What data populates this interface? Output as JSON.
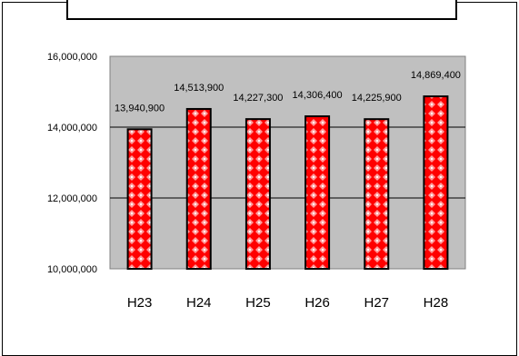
{
  "chart_data": {
    "type": "bar",
    "title": "",
    "xlabel": "",
    "ylabel": "",
    "categories": [
      "H23",
      "H24",
      "H25",
      "H26",
      "H27",
      "H28"
    ],
    "values": [
      13940900,
      14513900,
      14227300,
      14306400,
      14225900,
      14869400
    ],
    "data_labels": [
      "13,940,900",
      "14,513,900",
      "14,227,300",
      "14,306,400",
      "14,225,900",
      "14,869,400"
    ],
    "ylim": [
      10000000,
      16000000
    ],
    "yticks": [
      10000000,
      12000000,
      14000000,
      16000000
    ],
    "ytick_labels": [
      "10,000,000",
      "12,000,000",
      "14,000,000",
      "16,000,000"
    ],
    "grid": true,
    "legend": "none",
    "colors": {
      "plot_background": "#c0c0c0",
      "bar_fill": "#ff0000",
      "bar_pattern": "#ff9999",
      "bar_outline": "#000000",
      "gridline": "#000000"
    }
  }
}
